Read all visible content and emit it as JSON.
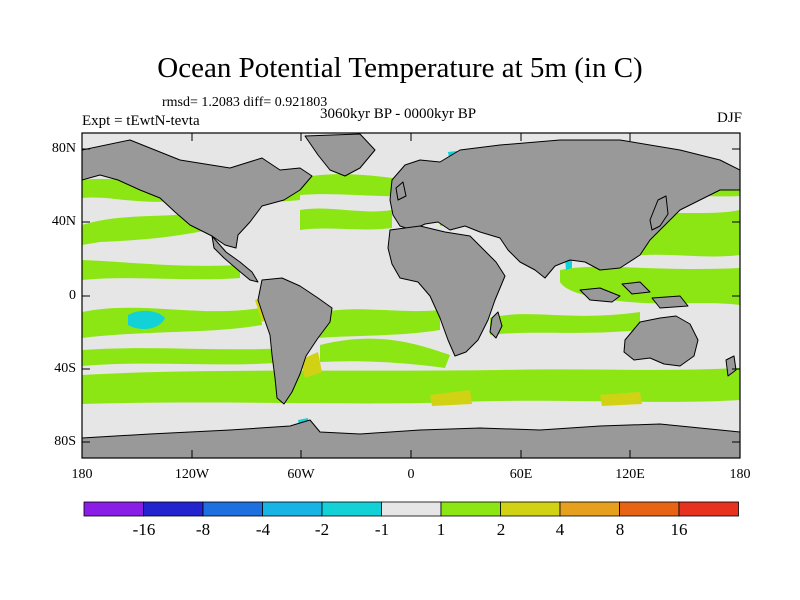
{
  "title": "Ocean Potential Temperature at 5m (in C)",
  "stats": "rmsd= 1.2083 diff= 0.921803",
  "experiment": "Expt = tEwtN-tevta",
  "period": "3060kyr BP - 0000kyr BP",
  "season": "DJF",
  "lat_ticks": [
    "80N",
    "40N",
    "0",
    "40S",
    "80S"
  ],
  "lon_ticks": [
    "180",
    "120W",
    "60W",
    "0",
    "60E",
    "120E",
    "180"
  ],
  "colorbar": {
    "labels": [
      "-16",
      "-8",
      "-4",
      "-2",
      "-1",
      "1",
      "2",
      "4",
      "8",
      "16"
    ],
    "colors": [
      "#8a1ee6",
      "#2323d0",
      "#1e6fe0",
      "#18b4e6",
      "#12d2d8",
      "#e6e6e6",
      "#8ce614",
      "#d2d214",
      "#e6a01e",
      "#e66414",
      "#e6321e"
    ]
  },
  "colors": {
    "land": "#999999",
    "ocean_neutral": "#e6e6e6",
    "warm_low": "#8ce614",
    "warm_mid": "#d2d214",
    "cold": "#12d2d8"
  }
}
